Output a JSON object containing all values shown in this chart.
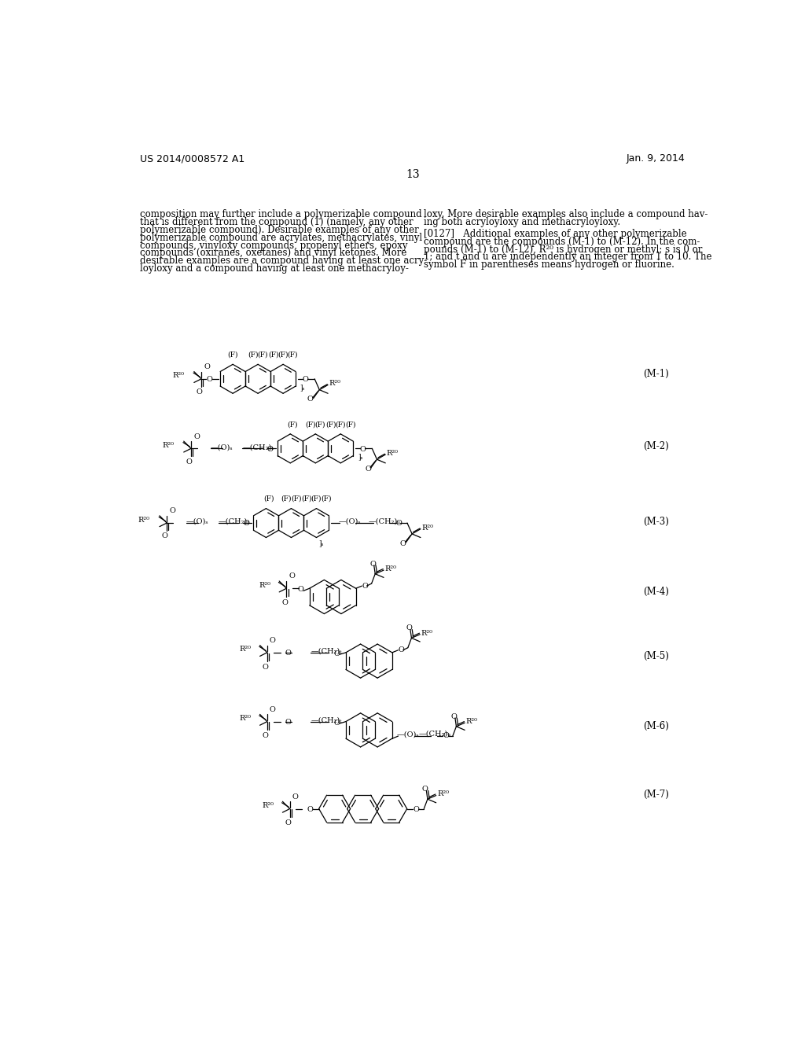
{
  "bg_color": "#ffffff",
  "header_left": "US 2014/0008572 A1",
  "header_right": "Jan. 9, 2014",
  "page_number": "13",
  "para_left": "composition may further include a polymerizable compound\nthat is different from the compound (1) (namely, any other\npolymerizable compound). Desirable examples of any other\npolymerizable compound are acrylates, methacrylates, vinyl\ncompounds, vinyloxy compounds, propenyl ethers, epoxy\ncompounds (oxiranes, oxetanes) and vinyl ketones. More\ndesirable examples are a compound having at least one acry-\nloyloxy and a compound having at least one methacryloy-",
  "para_right": "loxy. More desirable examples also include a compound hav-\ning both acryloyloxy and methacryloyloxy.\n\n[0127]   Additional examples of any other polymerizable\ncompound are the compounds (M-1) to (M-12). In the com-\npounds (M-1) to (M-12), R²⁰ is hydrogen or methyl; s is 0 or\n1; and t and u are independently an integer from 1 to 10. The\nsymbol F in parentheses means hydrogen or fluorine.",
  "labels": [
    "(M-1)",
    "(M-2)",
    "(M-3)",
    "(M-4)",
    "(M-5)",
    "(M-6)",
    "(M-7)"
  ]
}
